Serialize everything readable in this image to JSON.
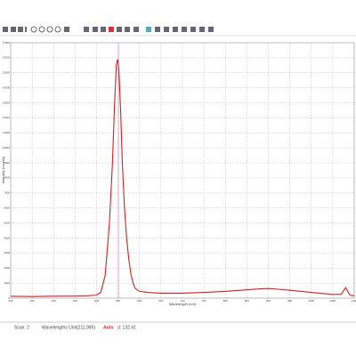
{
  "chart_data": {
    "type": "line",
    "y_label": "Intensity (counts)",
    "x_label": "Wavelength (nm)",
    "x": [
      300,
      350,
      400,
      450,
      480,
      500,
      510,
      520,
      530,
      537,
      542,
      546,
      549,
      552,
      556,
      560,
      565,
      570,
      575,
      580,
      585,
      590,
      600,
      620,
      650,
      700,
      750,
      800,
      850,
      880,
      900,
      920,
      950,
      1000,
      1030,
      1050,
      1070,
      1080,
      1090,
      1100
    ],
    "values": [
      120,
      110,
      130,
      140,
      160,
      200,
      400,
      1500,
      5000,
      9000,
      13000,
      15500,
      15900,
      15200,
      12500,
      9000,
      6000,
      4000,
      2600,
      1600,
      1000,
      650,
      450,
      380,
      330,
      330,
      380,
      450,
      550,
      620,
      640,
      600,
      520,
      380,
      300,
      250,
      260,
      700,
      200,
      150
    ],
    "color": "#d42020",
    "cursor_x": 551,
    "xlim": [
      300,
      1100
    ],
    "xticks": [
      300,
      350,
      400,
      450,
      500,
      550,
      600,
      650,
      700,
      750,
      800,
      850,
      900,
      950,
      1000,
      1050,
      1100
    ],
    "ylim": [
      0,
      17000
    ],
    "yticks": [
      0,
      1000,
      2000,
      3000,
      4000,
      5000,
      6000,
      7000,
      8000,
      9000,
      10000,
      11000,
      12000,
      13000,
      14000,
      15000,
      16000,
      17000
    ],
    "grid": true
  },
  "status_bar": {
    "scan": "Scan: 2",
    "unit": "Wavelengths Unit(211.995)",
    "mode": "Auto",
    "cursor": "d: 132.41"
  }
}
